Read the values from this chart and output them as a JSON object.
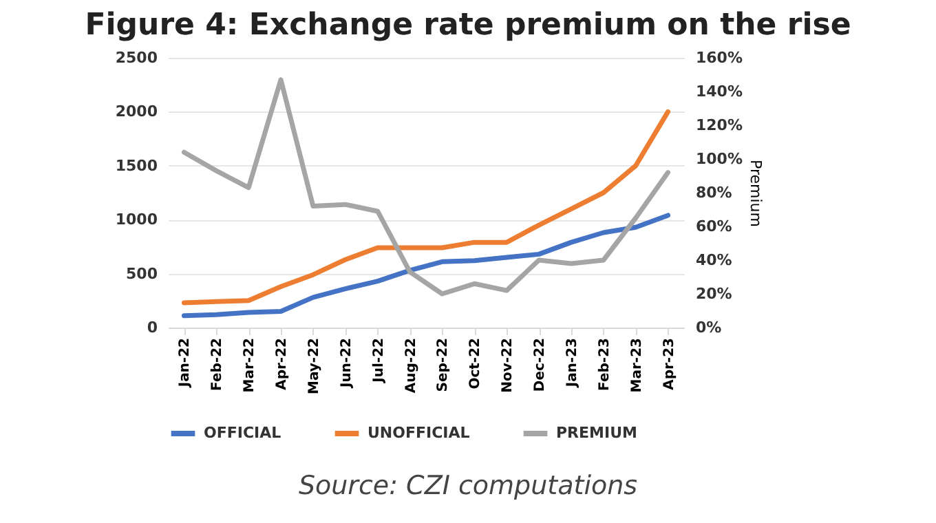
{
  "chart_data": {
    "type": "line",
    "title": "Figure 4: Exchange rate premium on the rise",
    "categories": [
      "Jan-22",
      "Feb-22",
      "Mar-22",
      "Apr-22",
      "May-22",
      "Jun-22",
      "Jul-22",
      "Aug-22",
      "Sep-22",
      "Oct-22",
      "Nov-22",
      "Dec-22",
      "Jan-23",
      "Feb-23",
      "Mar-23",
      "Apr-23"
    ],
    "series": [
      {
        "name": "OFFICIAL",
        "color": "#4472c4",
        "values": [
          110,
          120,
          140,
          150,
          280,
          360,
          430,
          530,
          610,
          620,
          650,
          680,
          790,
          880,
          930,
          1040
        ]
      },
      {
        "name": "UNOFFICIAL",
        "color": "#ed7d31",
        "values": [
          230,
          240,
          250,
          380,
          490,
          630,
          740,
          740,
          740,
          790,
          790,
          950,
          1100,
          1250,
          1500,
          2000
        ]
      },
      {
        "name": "PREMIUM",
        "color": "#a5a5a5",
        "axis": "y2",
        "values": [
          104,
          93,
          83,
          147,
          72,
          73,
          69,
          33,
          20,
          26,
          22,
          40,
          38,
          40,
          65,
          92
        ]
      }
    ],
    "ylim": [
      0,
      2500
    ],
    "yticks": [
      0,
      500,
      1000,
      1500,
      2000,
      2500
    ],
    "y2label": "Premium",
    "y2lim": [
      0,
      160
    ],
    "y2ticks": [
      {
        "value": 0,
        "label": "0%"
      },
      {
        "value": 20,
        "label": "20%"
      },
      {
        "value": 40,
        "label": "40%"
      },
      {
        "value": 60,
        "label": "60%"
      },
      {
        "value": 80,
        "label": "80%"
      },
      {
        "value": 100,
        "label": "100%"
      },
      {
        "value": 120,
        "label": "120%"
      },
      {
        "value": 140,
        "label": "140%"
      },
      {
        "value": 160,
        "label": "160%"
      }
    ],
    "grid": "y",
    "legend": "bottom",
    "line_style": "solid",
    "marker": "none",
    "annotations": [
      "Source: CZI computations"
    ]
  }
}
